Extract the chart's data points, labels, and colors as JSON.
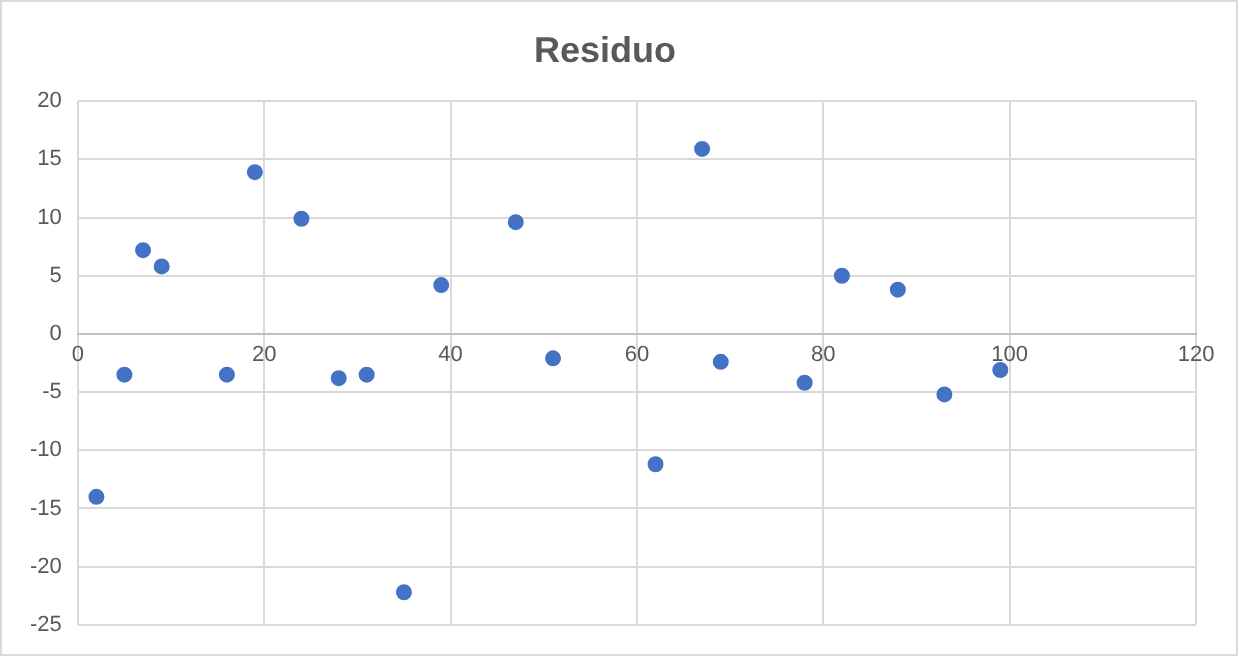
{
  "chart_data": {
    "type": "scatter",
    "title": "Residuo",
    "x": [
      2,
      5,
      7,
      9,
      16,
      19,
      24,
      28,
      31,
      35,
      39,
      47,
      51,
      62,
      67,
      69,
      78,
      82,
      88,
      93,
      99
    ],
    "series": [
      {
        "color": "#4472c4",
        "values": [
          -14,
          -3.5,
          7.2,
          5.8,
          -3.5,
          13.9,
          9.9,
          -3.8,
          -3.5,
          -22.2,
          4.2,
          9.6,
          -2.1,
          -11.2,
          15.9,
          -2.4,
          -4.2,
          5,
          3.8,
          -5.2,
          -3.1
        ]
      }
    ],
    "xlim": [
      0,
      120
    ],
    "xticks": [
      0,
      20,
      40,
      60,
      80,
      100,
      120
    ],
    "ylim": [
      -25,
      20
    ],
    "yticks": [
      -25,
      -20,
      -15,
      -10,
      -5,
      0,
      5,
      10,
      15,
      20
    ],
    "grid": true,
    "marker": "circle",
    "legend": false
  }
}
